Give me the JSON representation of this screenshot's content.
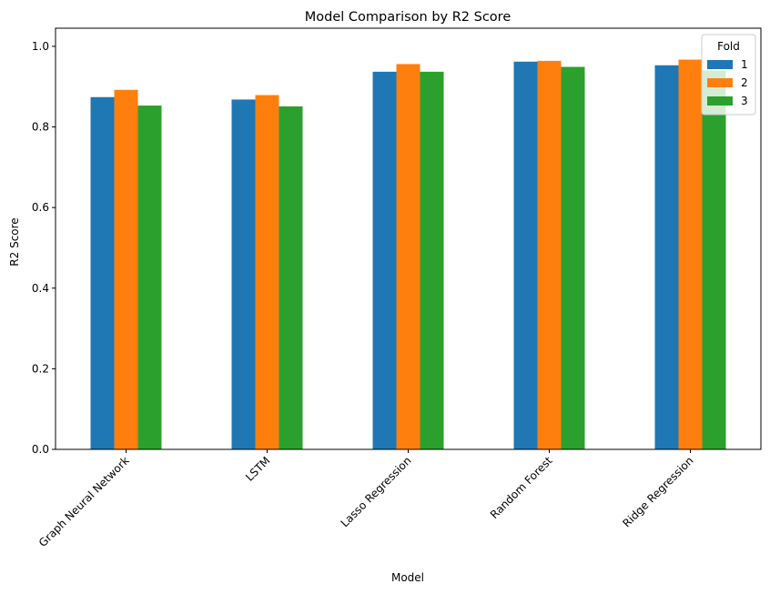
{
  "chart_data": {
    "type": "bar",
    "title": "Model Comparison by R2 Score",
    "xlabel": "Model",
    "ylabel": "R2 Score",
    "categories": [
      "Graph Neural Network",
      "LSTM",
      "Lasso Regression",
      "Random Forest",
      "Ridge Regression"
    ],
    "series": [
      {
        "name": "1",
        "color": "#1f77b4",
        "values": [
          0.874,
          0.868,
          0.937,
          0.962,
          0.953
        ]
      },
      {
        "name": "2",
        "color": "#ff7f0e",
        "values": [
          0.892,
          0.879,
          0.956,
          0.964,
          0.967
        ]
      },
      {
        "name": "3",
        "color": "#2ca02c",
        "values": [
          0.853,
          0.851,
          0.937,
          0.949,
          0.94
        ]
      }
    ],
    "ylim": [
      0,
      1.0
    ],
    "yticks": [
      "0.0",
      "0.2",
      "0.4",
      "0.6",
      "0.8",
      "1.0"
    ],
    "grid": false,
    "legend": {
      "title": "Fold",
      "position": "top-right"
    }
  }
}
